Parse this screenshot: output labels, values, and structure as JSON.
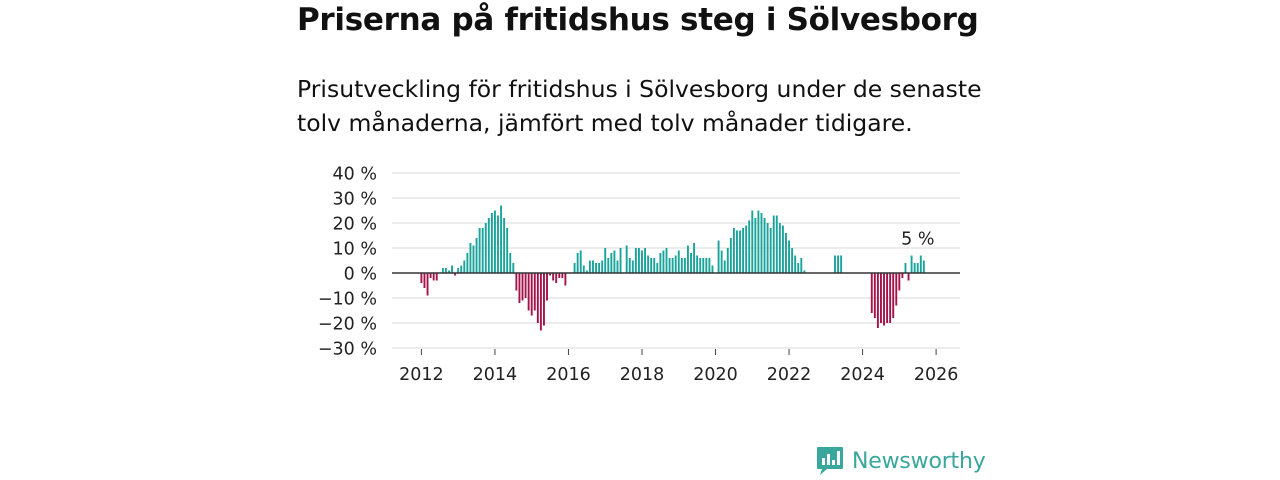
{
  "title": "Priserna på fritidshus steg i Sölvesborg",
  "subtitle": "Prisutveckling för fritidshus i Sölvesborg under de senaste tolv månaderna, jämfört med tolv månader tidigare.",
  "brand": "Newsworthy",
  "colors": {
    "positive": "#1aa39a",
    "negative": "#a5124a",
    "grid": "#d9d9d9",
    "zero": "#333333",
    "brand": "#3aa79c"
  },
  "chart_data": {
    "type": "bar",
    "title": "Priserna på fritidshus steg i Sölvesborg",
    "xlabel": "",
    "ylabel": "",
    "ylim": [
      -30,
      40
    ],
    "yticks": [
      -30,
      -20,
      -10,
      0,
      10,
      20,
      30,
      40
    ],
    "ytick_labels": [
      "−30 %",
      "−20 %",
      "−10 %",
      "0 %",
      "10 %",
      "20 %",
      "30 %",
      "40 %"
    ],
    "xticks": [
      2012,
      2014,
      2016,
      2018,
      2020,
      2022,
      2024,
      2026
    ],
    "x_start": 2012.0,
    "step_months": 1,
    "annotation": {
      "label": "5 %",
      "value": 5
    },
    "values": [
      -4,
      -6,
      -9,
      -2,
      -3,
      -3,
      0,
      2,
      2,
      1,
      3,
      -1,
      2,
      3,
      5,
      8,
      12,
      11,
      14,
      18,
      18,
      20,
      22,
      24,
      25,
      23,
      27,
      22,
      18,
      8,
      4,
      -7,
      -12,
      -11,
      -10,
      -15,
      -17,
      -15,
      -20,
      -23,
      -21,
      -11,
      -1,
      -3,
      -4,
      -2,
      -2,
      -5,
      null,
      null,
      4,
      8,
      9,
      3,
      1,
      5,
      5,
      4,
      4,
      5,
      10,
      6,
      8,
      9,
      5,
      10,
      null,
      11,
      6,
      5,
      10,
      10,
      9,
      10,
      7,
      6,
      6,
      4,
      8,
      9,
      10,
      6,
      6,
      7,
      9,
      6,
      6,
      11,
      8,
      12,
      7,
      6,
      6,
      6,
      6,
      3,
      null,
      13,
      9,
      5,
      10,
      14,
      18,
      17,
      17,
      18,
      19,
      21,
      25,
      22,
      25,
      24,
      22,
      20,
      18,
      23,
      23,
      20,
      19,
      16,
      13,
      10,
      7,
      4,
      6,
      1,
      null,
      null,
      null,
      null,
      null,
      null,
      null,
      null,
      null,
      7,
      7,
      7,
      null,
      null,
      null,
      null,
      null,
      null,
      null,
      null,
      null,
      -16,
      -18,
      -22,
      -20,
      -21,
      -20,
      -20,
      -18,
      -13,
      -7,
      -2,
      4,
      -3,
      7,
      4,
      4,
      7,
      5
    ]
  }
}
